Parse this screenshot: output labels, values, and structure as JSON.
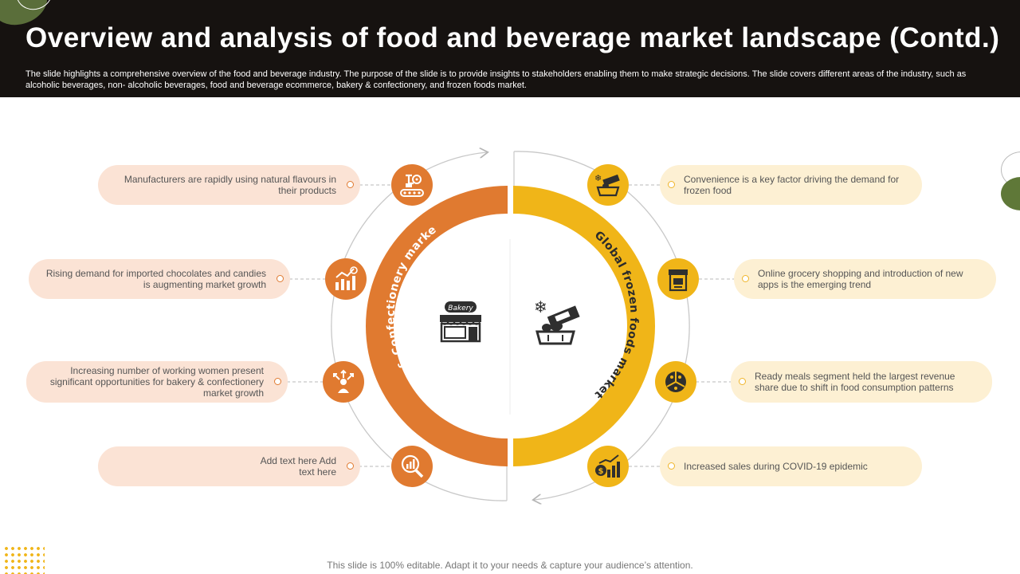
{
  "header": {
    "title": "Overview and analysis of food and beverage market landscape (Contd.)",
    "description": "The slide highlights a comprehensive overview of the food and beverage industry. The purpose of the slide is to provide insights to stakeholders enabling them to make strategic decisions. The slide covers different areas of the industry, such as alcoholic beverages, non- alcoholic beverages, food and beverage ecommerce, bakery & confectionery, and frozen foods market."
  },
  "left_section": {
    "label": "Bakery & Confectionery market",
    "center_icon": "bakery-shop-icon",
    "center_icon_text": "Bakery",
    "color": "#e07a30",
    "items": [
      {
        "text": "Manufacturers are rapidly using natural flavours in their products",
        "icon": "factory-robot-icon"
      },
      {
        "text": "Rising demand for imported chocolates and candies is augmenting market growth",
        "icon": "growth-chart-icon"
      },
      {
        "text": "Increasing number of working women present significant opportunities for bakery & confectionery market growth",
        "icon": "person-arrows-icon"
      },
      {
        "text": "Add text here Add text here",
        "icon": "chart-magnifier-icon"
      }
    ]
  },
  "right_section": {
    "label": "Global frozen foods market",
    "center_icon": "frozen-food-icon",
    "color": "#f0b518",
    "items": [
      {
        "text": "Convenience is a key factor driving the demand for frozen food",
        "icon": "frozen-food-icon"
      },
      {
        "text": "Online grocery shopping and introduction of new apps is the emerging trend",
        "icon": "online-store-icon"
      },
      {
        "text": "Ready meals segment held the largest revenue share due to shift in food consumption patterns",
        "icon": "pie-people-icon"
      },
      {
        "text": "Increased sales during COVID-19 epidemic",
        "icon": "sales-growth-icon"
      }
    ]
  },
  "footer": {
    "note": "This slide is 100% editable. Adapt it to your needs & capture your audience’s attention."
  }
}
